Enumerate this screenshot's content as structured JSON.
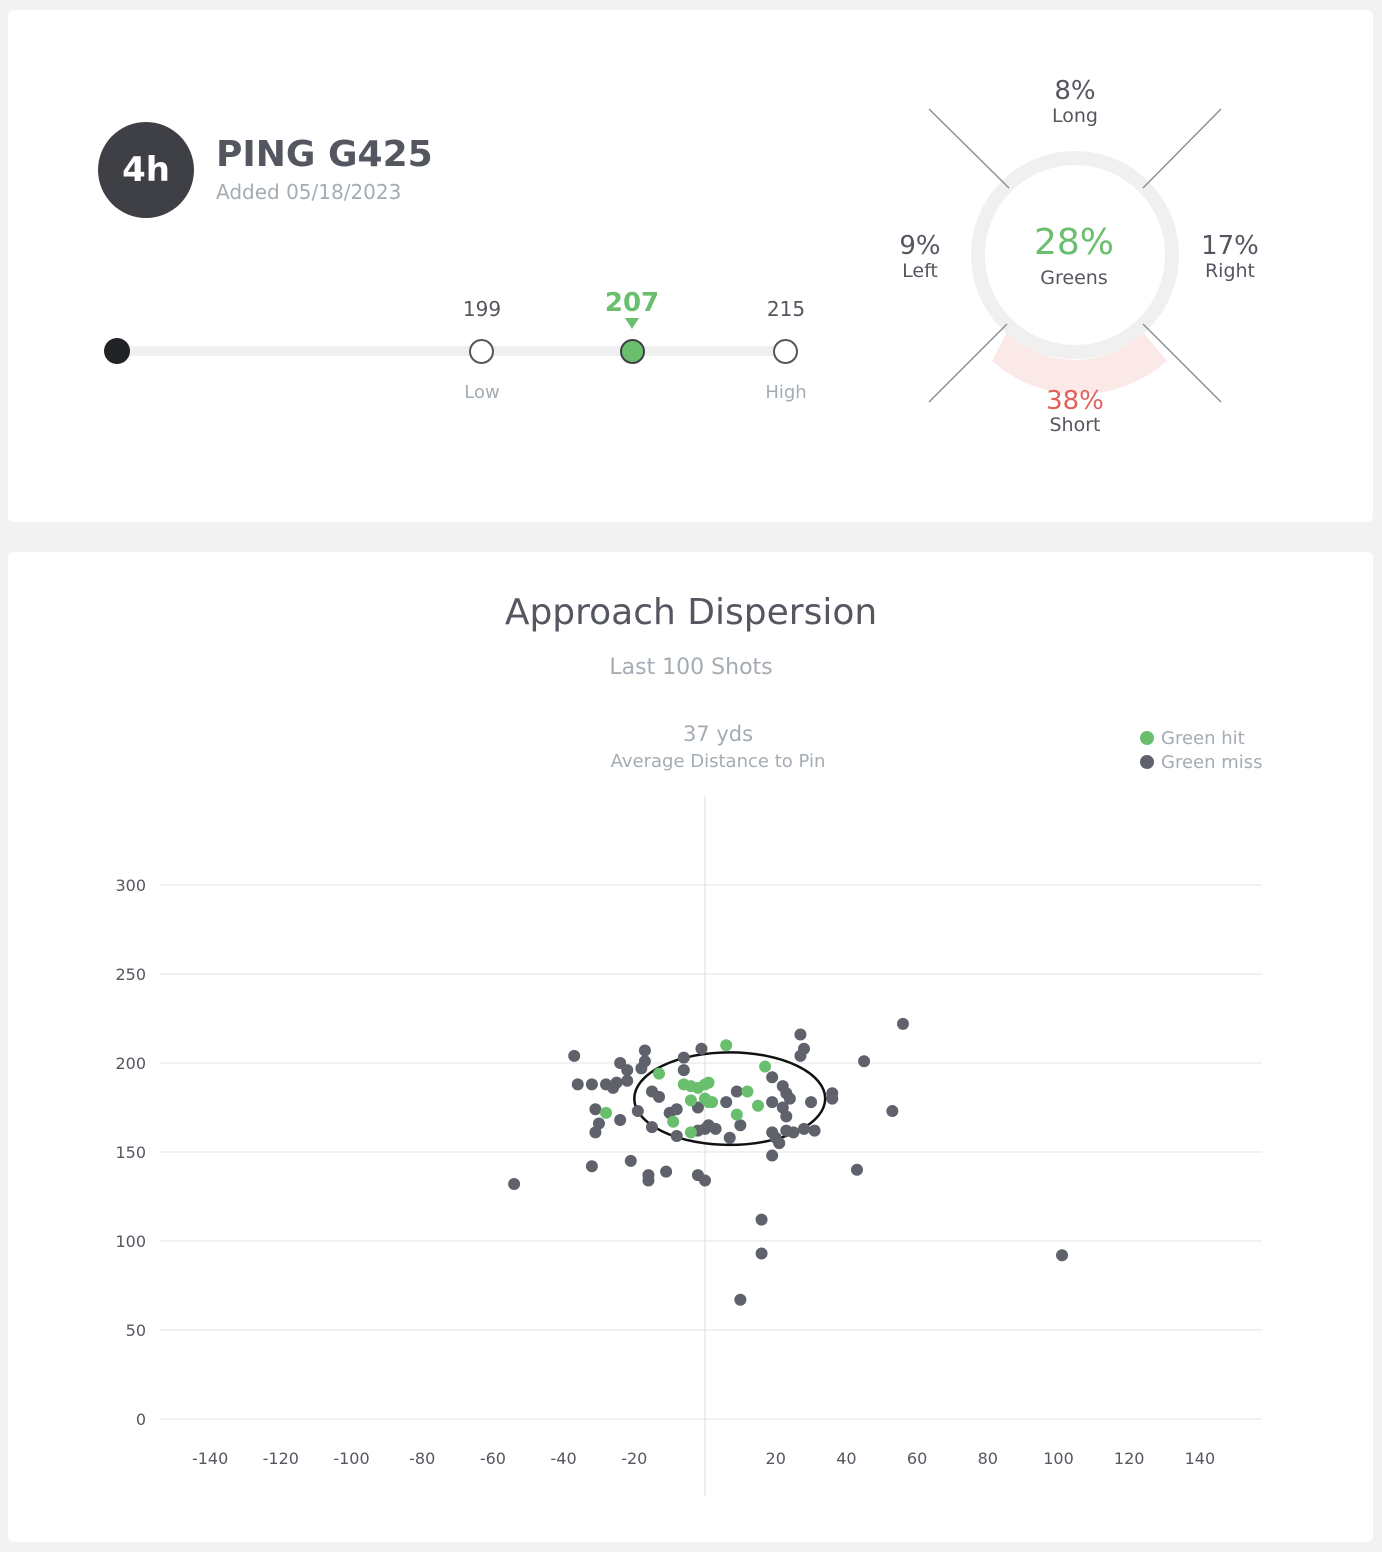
{
  "club": {
    "badge": "4h",
    "name": "PING G425",
    "added": "Added 05/18/2023"
  },
  "distance": {
    "low_value": "199",
    "low_label": "Low",
    "avg_value": "207",
    "high_value": "215",
    "high_label": "High"
  },
  "miss": {
    "long_pct": "8%",
    "long_label": "Long",
    "left_pct": "9%",
    "left_label": "Left",
    "right_pct": "17%",
    "right_label": "Right",
    "short_pct": "38%",
    "short_label": "Short",
    "greens_pct": "28%",
    "greens_label": "Greens"
  },
  "colors": {
    "hit": "#6abf6f",
    "miss": "#5f616b",
    "short": "#e0625e",
    "short_band": "#fbe9e8",
    "ring": "#f0f0f0",
    "grid": "#e3e3e3",
    "muted": "#a4acb3",
    "text": "#555760"
  },
  "chart_data": {
    "type": "scatter",
    "title": "Approach Dispersion",
    "subtitle": "Last 100 Shots",
    "avg_distance_value": "37 yds",
    "avg_distance_label": "Average Distance to Pin",
    "xlim": [
      -140,
      140
    ],
    "ylim": [
      0,
      300
    ],
    "x_ticks": [
      -140,
      -120,
      -100,
      -80,
      -60,
      -40,
      -20,
      20,
      40,
      60,
      80,
      100,
      120,
      140
    ],
    "y_ticks": [
      0,
      50,
      100,
      150,
      200,
      250,
      300
    ],
    "grid": "horizontal",
    "legend_position": "top-right",
    "ellipse": {
      "cx": 7,
      "cy": 180,
      "rx": 27,
      "ry": 26
    },
    "series": [
      {
        "name": "Green hit",
        "points": [
          [
            6,
            210
          ],
          [
            17,
            198
          ],
          [
            -13,
            194
          ],
          [
            -6,
            188
          ],
          [
            -4,
            187
          ],
          [
            -2,
            186
          ],
          [
            0,
            188
          ],
          [
            1,
            189
          ],
          [
            2,
            178
          ],
          [
            -4,
            179
          ],
          [
            0,
            180
          ],
          [
            1,
            178
          ],
          [
            12,
            184
          ],
          [
            15,
            176
          ],
          [
            9,
            171
          ],
          [
            -9,
            167
          ],
          [
            -4,
            161
          ],
          [
            -28,
            172
          ]
        ]
      },
      {
        "name": "Green miss",
        "points": [
          [
            -37,
            204
          ],
          [
            -36,
            188
          ],
          [
            -32,
            188
          ],
          [
            -28,
            188
          ],
          [
            -26,
            186
          ],
          [
            -25,
            189
          ],
          [
            -22,
            190
          ],
          [
            -22,
            196
          ],
          [
            -24,
            200
          ],
          [
            -18,
            197
          ],
          [
            -17,
            207
          ],
          [
            -17,
            201
          ],
          [
            -6,
            203
          ],
          [
            -6,
            196
          ],
          [
            -1,
            208
          ],
          [
            -15,
            184
          ],
          [
            -13,
            181
          ],
          [
            -19,
            173
          ],
          [
            -10,
            172
          ],
          [
            -8,
            174
          ],
          [
            -2,
            175
          ],
          [
            -31,
            174
          ],
          [
            -30,
            166
          ],
          [
            -31,
            161
          ],
          [
            -24,
            168
          ],
          [
            -15,
            164
          ],
          [
            -8,
            159
          ],
          [
            -2,
            162
          ],
          [
            0,
            163
          ],
          [
            1,
            165
          ],
          [
            3,
            163
          ],
          [
            6,
            178
          ],
          [
            9,
            184
          ],
          [
            10,
            165
          ],
          [
            7,
            158
          ],
          [
            19,
            192
          ],
          [
            22,
            187
          ],
          [
            23,
            183
          ],
          [
            24,
            180
          ],
          [
            19,
            178
          ],
          [
            22,
            175
          ],
          [
            23,
            170
          ],
          [
            19,
            161
          ],
          [
            20,
            158
          ],
          [
            21,
            155
          ],
          [
            23,
            162
          ],
          [
            25,
            161
          ],
          [
            28,
            163
          ],
          [
            31,
            162
          ],
          [
            30,
            178
          ],
          [
            36,
            183
          ],
          [
            36,
            180
          ],
          [
            27,
            204
          ],
          [
            28,
            208
          ],
          [
            27,
            216
          ],
          [
            45,
            201
          ],
          [
            -32,
            142
          ],
          [
            -21,
            145
          ],
          [
            -16,
            137
          ],
          [
            -16,
            134
          ],
          [
            -11,
            139
          ],
          [
            -2,
            137
          ],
          [
            0,
            134
          ],
          [
            19,
            148
          ],
          [
            43,
            140
          ],
          [
            53,
            173
          ],
          [
            56,
            222
          ],
          [
            -54,
            132
          ],
          [
            16,
            112
          ],
          [
            16,
            93
          ],
          [
            10,
            67
          ],
          [
            101,
            92
          ]
        ]
      }
    ]
  }
}
